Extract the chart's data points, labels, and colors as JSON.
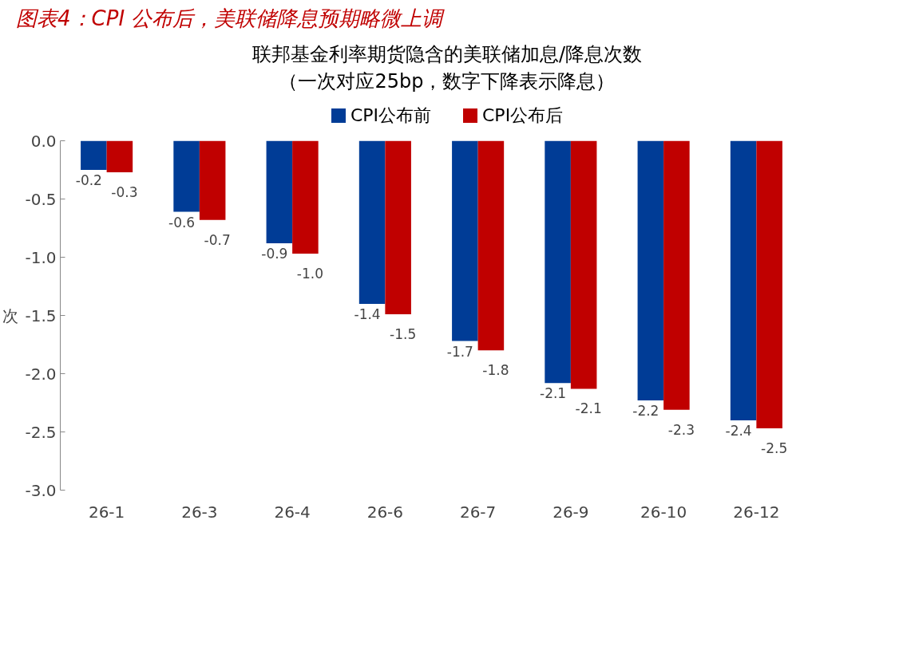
{
  "chart_data": {
    "type": "bar",
    "title": "图表4：CPI 公布后，美联储降息预期略微上调",
    "subtitle": "联邦基金利率期货隐含的美联储加息/降息次数（一次对应25bp，数字下降表示降息）",
    "ylabel": "次",
    "categories": [
      "26-1",
      "26-3",
      "26-4",
      "26-6",
      "26-7",
      "26-9",
      "26-10",
      "26-12"
    ],
    "series": [
      {
        "name": "CPI公布前",
        "color": "#003c96",
        "values": [
          -0.25,
          -0.61,
          -0.88,
          -1.4,
          -1.72,
          -2.08,
          -2.23,
          -2.4
        ],
        "value_labels": [
          "-0.2",
          "-0.6",
          "-0.9",
          "-1.4",
          "-1.7",
          "-2.1",
          "-2.2",
          "-2.4"
        ]
      },
      {
        "name": "CPI公布后",
        "color": "#c00000",
        "values": [
          -0.27,
          -0.68,
          -0.97,
          -1.49,
          -1.8,
          -2.13,
          -2.31,
          -2.47
        ],
        "value_labels": [
          "-0.3",
          "-0.7",
          "-1.0",
          "-1.5",
          "-1.8",
          "-2.1",
          "-2.3",
          "-2.5"
        ]
      }
    ],
    "ylim": [
      -3,
      0
    ],
    "yticks": [
      {
        "value": 0,
        "label": "0.0"
      },
      {
        "value": -0.5,
        "label": "-0.5"
      },
      {
        "value": -1,
        "label": "-1.0"
      },
      {
        "value": -1.5,
        "label": "-1.5"
      },
      {
        "value": -2,
        "label": "-2.0"
      },
      {
        "value": -2.5,
        "label": "-2.5"
      },
      {
        "value": -3,
        "label": "-3.0"
      }
    ],
    "legend": "top",
    "grid": false
  }
}
